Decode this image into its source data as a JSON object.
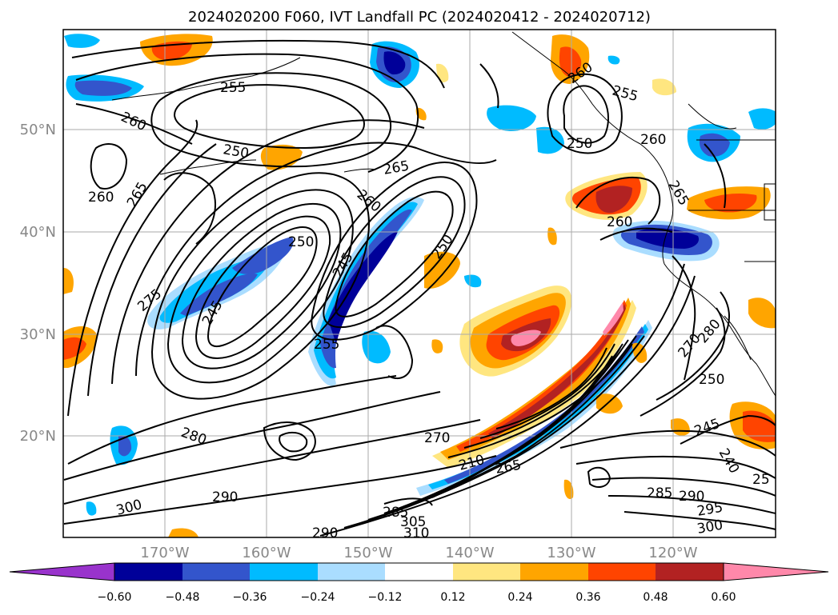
{
  "map": {
    "title": "2024020200 F060, IVT Landfall PC (2024020412 - 2024020712)",
    "lat_labels": [
      "50°N",
      "40°N",
      "30°N",
      "20°N"
    ],
    "lon_labels": [
      "170°W",
      "160°W",
      "150°W",
      "140°W",
      "130°W",
      "120°W"
    ],
    "label_color": "#888888",
    "contour_labels": [
      "255",
      "260",
      "250",
      "265",
      "260",
      "260",
      "265",
      "275",
      "250",
      "250",
      "245",
      "245",
      "255",
      "260",
      "255",
      "250",
      "265",
      "260",
      "280",
      "270",
      "210",
      "265",
      "270",
      "285",
      "290",
      "300",
      "285",
      "290",
      "295",
      "300",
      "310",
      "305",
      "290",
      "260",
      "280",
      "250",
      "245",
      "240",
      "25"
    ]
  },
  "colorbar": {
    "ticks": [
      "−0.60",
      "−0.48",
      "−0.36",
      "−0.24",
      "−0.12",
      "0.12",
      "0.24",
      "0.36",
      "0.48",
      "0.60"
    ],
    "colors": [
      "#9933cc",
      "#000099",
      "#3355cc",
      "#00bbff",
      "#aaddff",
      "#ffffff",
      "#ffe680",
      "#ffa500",
      "#ff4400",
      "#b22222",
      "#ff88aa"
    ]
  }
}
